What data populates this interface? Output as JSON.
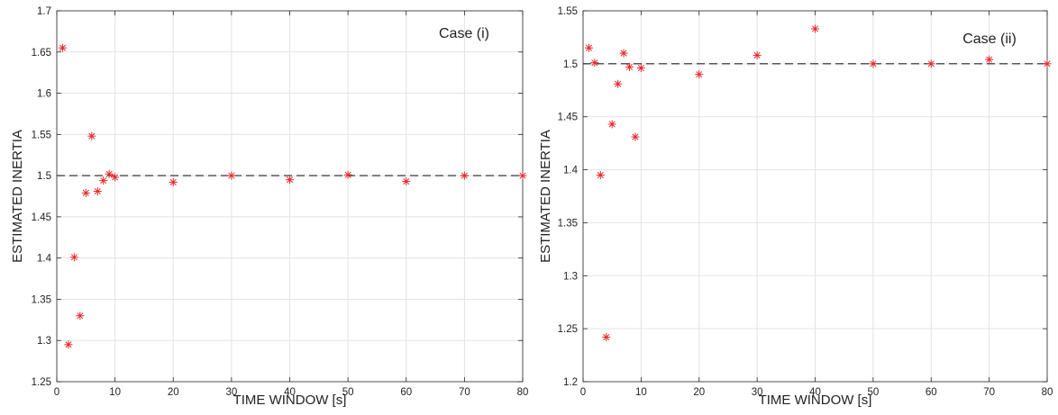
{
  "chart_data": [
    {
      "type": "scatter",
      "annotation": "Case (i)",
      "xlabel": "TIME WINDOW [s]",
      "ylabel": "ESTIMATED INERTIA",
      "xlim": [
        0,
        80
      ],
      "ylim": [
        1.25,
        1.7
      ],
      "xticks": [
        "0",
        "10",
        "20",
        "30",
        "40",
        "50",
        "60",
        "70",
        "80"
      ],
      "yticks": [
        "1.25",
        "1.3",
        "1.35",
        "1.4",
        "1.45",
        "1.5",
        "1.55",
        "1.6",
        "1.65",
        "1.7"
      ],
      "grid": true,
      "reference_line": 1.5,
      "marker": "asterisk",
      "marker_color": "#e8272a",
      "reference_color": "#222222",
      "x": [
        1,
        2,
        3,
        4,
        5,
        6,
        7,
        8,
        9,
        10,
        20,
        30,
        40,
        50,
        60,
        70,
        80
      ],
      "y": [
        1.655,
        1.295,
        1.401,
        1.33,
        1.479,
        1.548,
        1.481,
        1.494,
        1.502,
        1.498,
        1.492,
        1.5,
        1.495,
        1.501,
        1.493,
        1.5,
        1.5
      ]
    },
    {
      "type": "scatter",
      "annotation": "Case (ii)",
      "xlabel": "TIME WINDOW [s]",
      "ylabel": "ESTIMATED INERTIA",
      "xlim": [
        0,
        80
      ],
      "ylim": [
        1.2,
        1.55
      ],
      "xticks": [
        "0",
        "10",
        "20",
        "30",
        "40",
        "50",
        "60",
        "70",
        "80"
      ],
      "yticks": [
        "1.2",
        "1.25",
        "1.3",
        "1.35",
        "1.4",
        "1.45",
        "1.5",
        "1.55"
      ],
      "grid": true,
      "reference_line": 1.5,
      "marker": "asterisk",
      "marker_color": "#e8272a",
      "reference_color": "#222222",
      "x": [
        1,
        2,
        3,
        4,
        5,
        6,
        7,
        8,
        9,
        10,
        20,
        30,
        40,
        50,
        60,
        70,
        80
      ],
      "y": [
        1.515,
        1.501,
        1.395,
        1.242,
        1.443,
        1.481,
        1.51,
        1.497,
        1.431,
        1.496,
        1.49,
        1.508,
        1.533,
        1.5,
        1.5,
        1.504,
        1.5
      ]
    }
  ]
}
